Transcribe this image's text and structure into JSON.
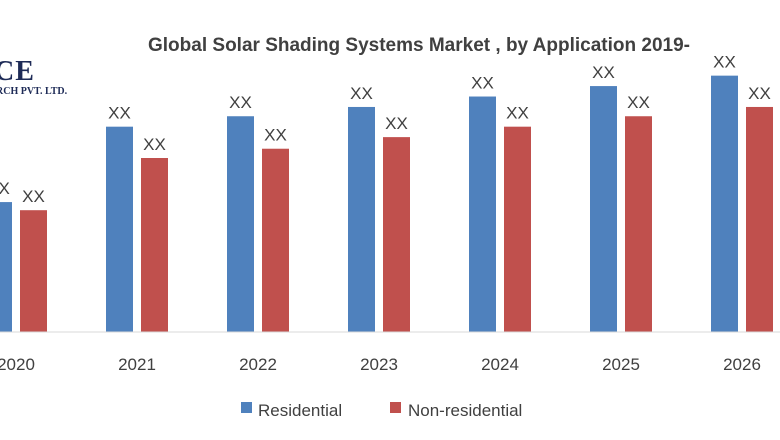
{
  "logo": {
    "main_text": "CE",
    "sub_text": "RCH PVT. LTD."
  },
  "chart_data": {
    "type": "bar",
    "title": "Global Solar Shading Systems Market , by Application 2019-",
    "categories": [
      "2020",
      "2021",
      "2022",
      "2023",
      "2024",
      "2025",
      "2026"
    ],
    "series": [
      {
        "name": "Residential",
        "color": "#4f81bd",
        "values": [
          112,
          177,
          186,
          194,
          203,
          212,
          221
        ],
        "labels": [
          "XX",
          "XX",
          "XX",
          "XX",
          "XX",
          "XX",
          "XX"
        ]
      },
      {
        "name": "Non-residential",
        "color": "#c0504d",
        "values": [
          105,
          150,
          158,
          168,
          177,
          186,
          194
        ],
        "labels": [
          "XX",
          "XX",
          "XX",
          "XX",
          "XX",
          "XX",
          "XX"
        ]
      }
    ],
    "ylim": [
      0,
      250
    ],
    "xlabel": "",
    "ylabel": "",
    "grid": false,
    "legend": "bottom"
  }
}
